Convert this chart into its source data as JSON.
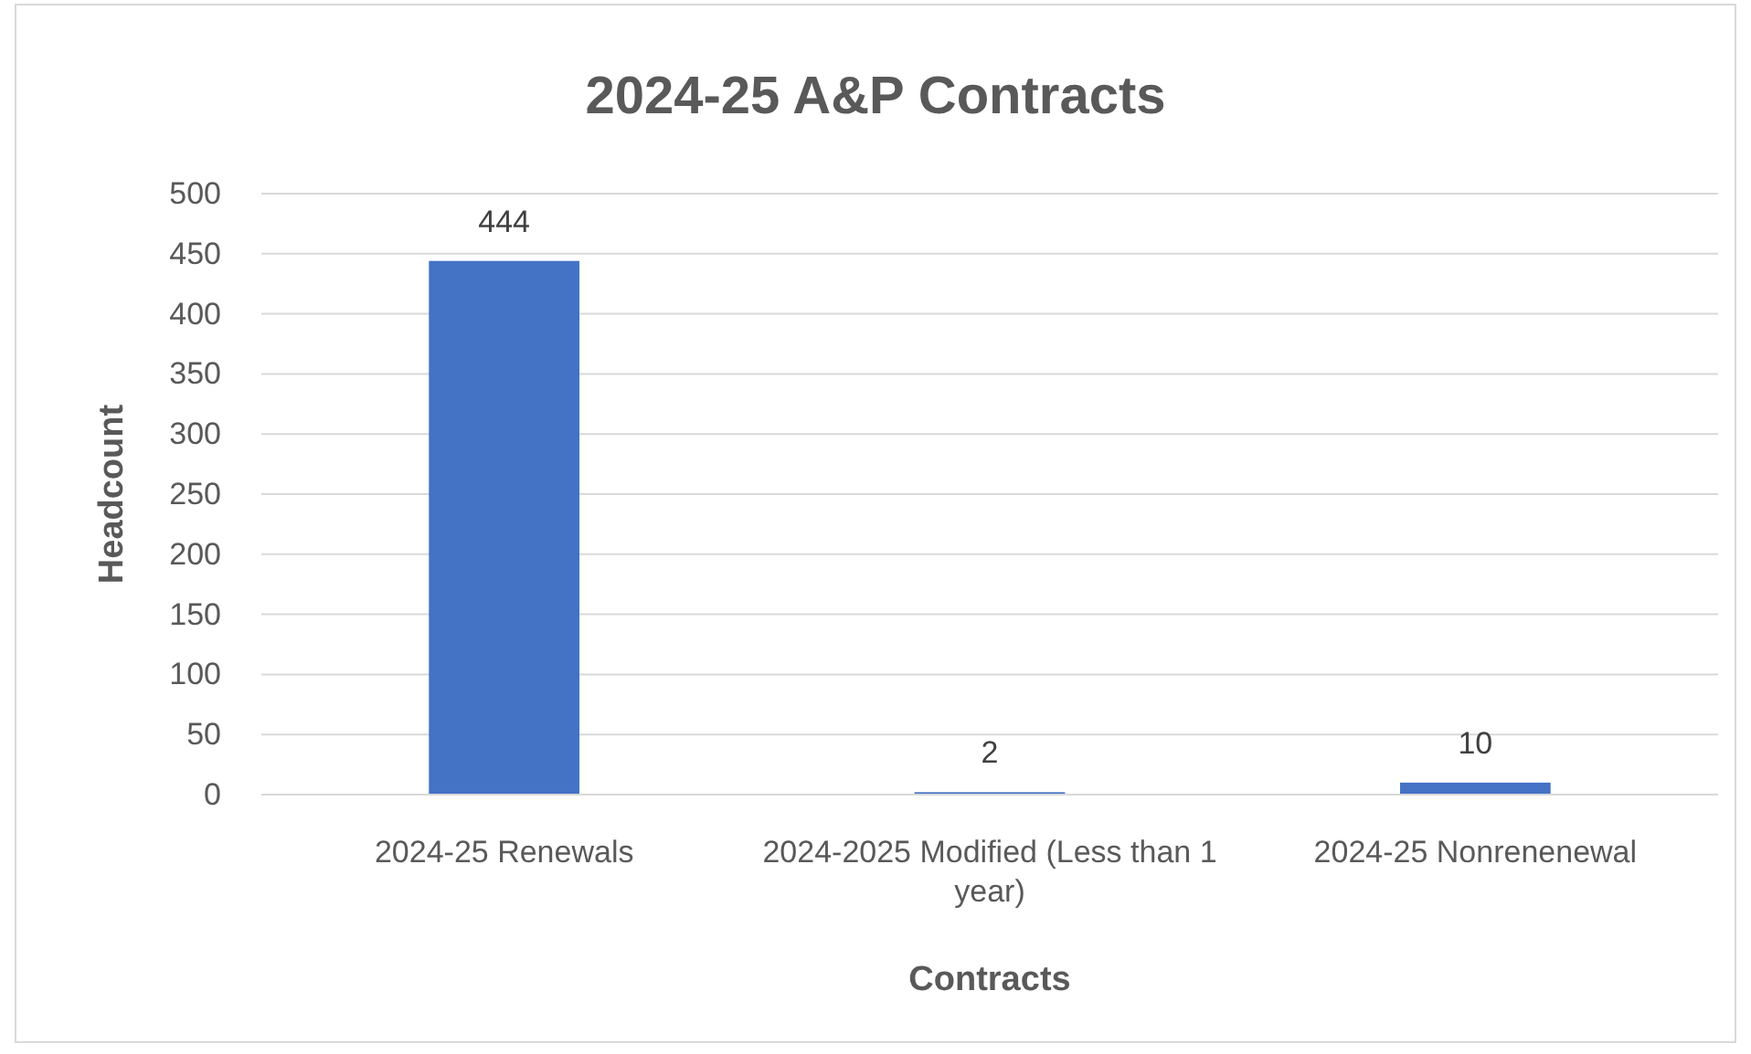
{
  "chart_data": {
    "type": "bar",
    "title": "2024-25 A&P Contracts",
    "xlabel": "Contracts",
    "ylabel": "Headcount",
    "categories": [
      "2024-25 Renewals",
      "2024-2025 Modified (Less than 1 year)",
      "2024-25 Nonrenenewal"
    ],
    "values": [
      444,
      2,
      10
    ],
    "color": "#4472c4",
    "ylim": [
      0,
      500
    ],
    "yticks": [
      0,
      50,
      100,
      150,
      200,
      250,
      300,
      350,
      400,
      450,
      500
    ],
    "grid": "y",
    "data_labels": true
  }
}
